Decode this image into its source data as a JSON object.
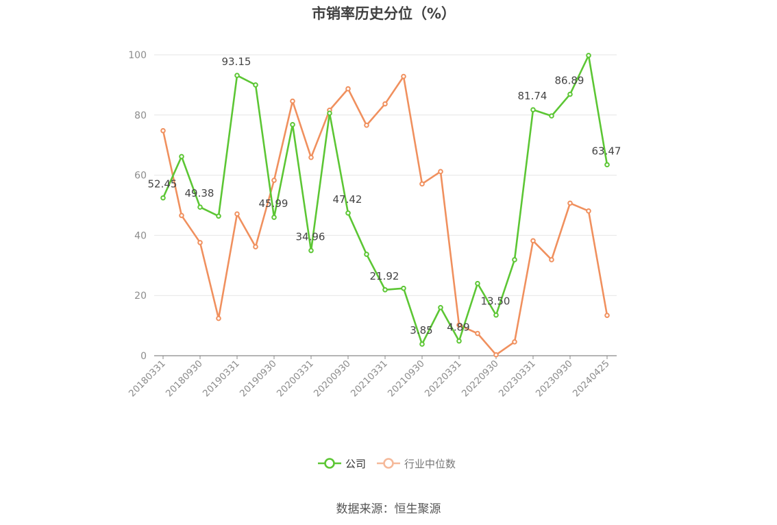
{
  "title": "市销率历史分位（%）",
  "source": "数据来源：恒生聚源",
  "colors": {
    "company": "#5cc634",
    "industry": "#f0905e",
    "industry_legend": "#f5b99a",
    "grid": "#e6e6e6",
    "axis": "#888888"
  },
  "chart_data": {
    "type": "line",
    "title": "市销率历史分位（%）",
    "xlabel": "",
    "ylabel": "",
    "ylim": [
      0,
      100
    ],
    "yticks": [
      0,
      20,
      40,
      60,
      80,
      100
    ],
    "x": [
      "20180331",
      "20180630",
      "20180930",
      "20181231",
      "20190331",
      "20190630",
      "20190930",
      "20191231",
      "20200331",
      "20200630",
      "20200930",
      "20201231",
      "20210331",
      "20210630",
      "20210930",
      "20211231",
      "20220331",
      "20220630",
      "20220930",
      "20221231",
      "20230331",
      "20230630",
      "20230930",
      "20231231",
      "20240425"
    ],
    "xtick_labels": [
      "20180331",
      "20180930",
      "20190331",
      "20190930",
      "20200331",
      "20200930",
      "20210331",
      "20210930",
      "20220331",
      "20220930",
      "20230331",
      "20230930",
      "20240425"
    ],
    "legend_position": "bottom",
    "grid": true,
    "series": [
      {
        "name": "公司",
        "color": "#5cc634",
        "values": [
          52.45,
          66.2,
          49.38,
          46.4,
          93.15,
          90.0,
          45.99,
          76.8,
          34.96,
          80.6,
          47.42,
          33.7,
          21.92,
          22.4,
          3.85,
          16.0,
          4.89,
          24.0,
          13.5,
          31.9,
          81.74,
          79.7,
          86.89,
          99.8,
          63.47
        ],
        "labels": [
          "52.45",
          "",
          "49.38",
          "",
          "93.15",
          "",
          "45.99",
          "",
          "34.96",
          "",
          "47.42",
          "",
          "21.92",
          "",
          "3.85",
          "",
          "4.89",
          "",
          "13.50",
          "",
          "81.74",
          "",
          "86.89",
          "",
          "63.47"
        ]
      },
      {
        "name": "行业中位数",
        "color": "#f0905e",
        "values": [
          74.8,
          46.6,
          37.6,
          12.4,
          47.1,
          36.2,
          58.3,
          84.6,
          65.9,
          81.6,
          88.7,
          76.6,
          83.7,
          92.8,
          57.1,
          61.2,
          10.2,
          7.4,
          0.3,
          4.6,
          38.2,
          31.9,
          50.7,
          48.1,
          13.4
        ]
      }
    ]
  }
}
